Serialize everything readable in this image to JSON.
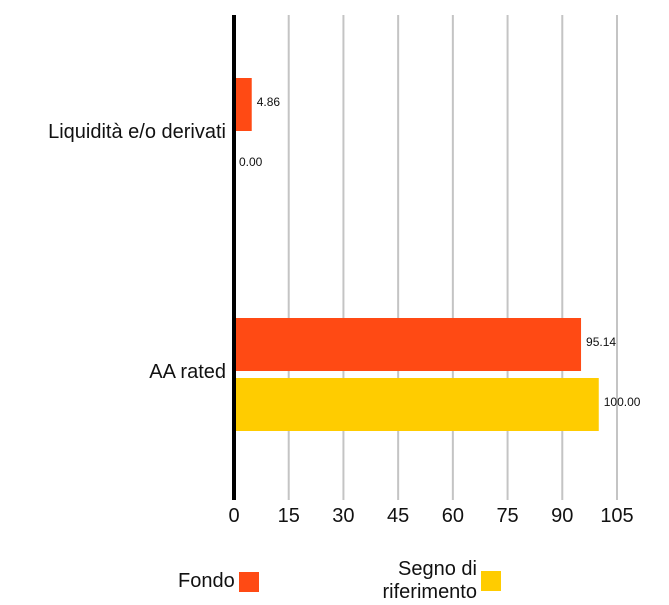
{
  "chart_data": {
    "type": "bar",
    "orientation": "horizontal",
    "categories": [
      "Liquidità e/o derivati",
      "AA rated"
    ],
    "series": [
      {
        "name": "Fondo",
        "values": [
          4.86,
          95.14
        ],
        "labels": [
          "4.86",
          "95.14"
        ],
        "color": "#ff4a14"
      },
      {
        "name": "Segno di riferimento",
        "values": [
          0.0,
          100.0
        ],
        "labels": [
          "0.00",
          "100.00"
        ],
        "color": "#ffcc00"
      }
    ],
    "xlim": [
      0,
      105
    ],
    "xticks": [
      "0",
      "15",
      "30",
      "45",
      "60",
      "75",
      "90",
      "105"
    ],
    "grid": true,
    "legend_position": "bottom"
  },
  "legend": {
    "fondo": "Fondo",
    "bench_line1": "Segno di",
    "bench_line2": "riferimento"
  }
}
